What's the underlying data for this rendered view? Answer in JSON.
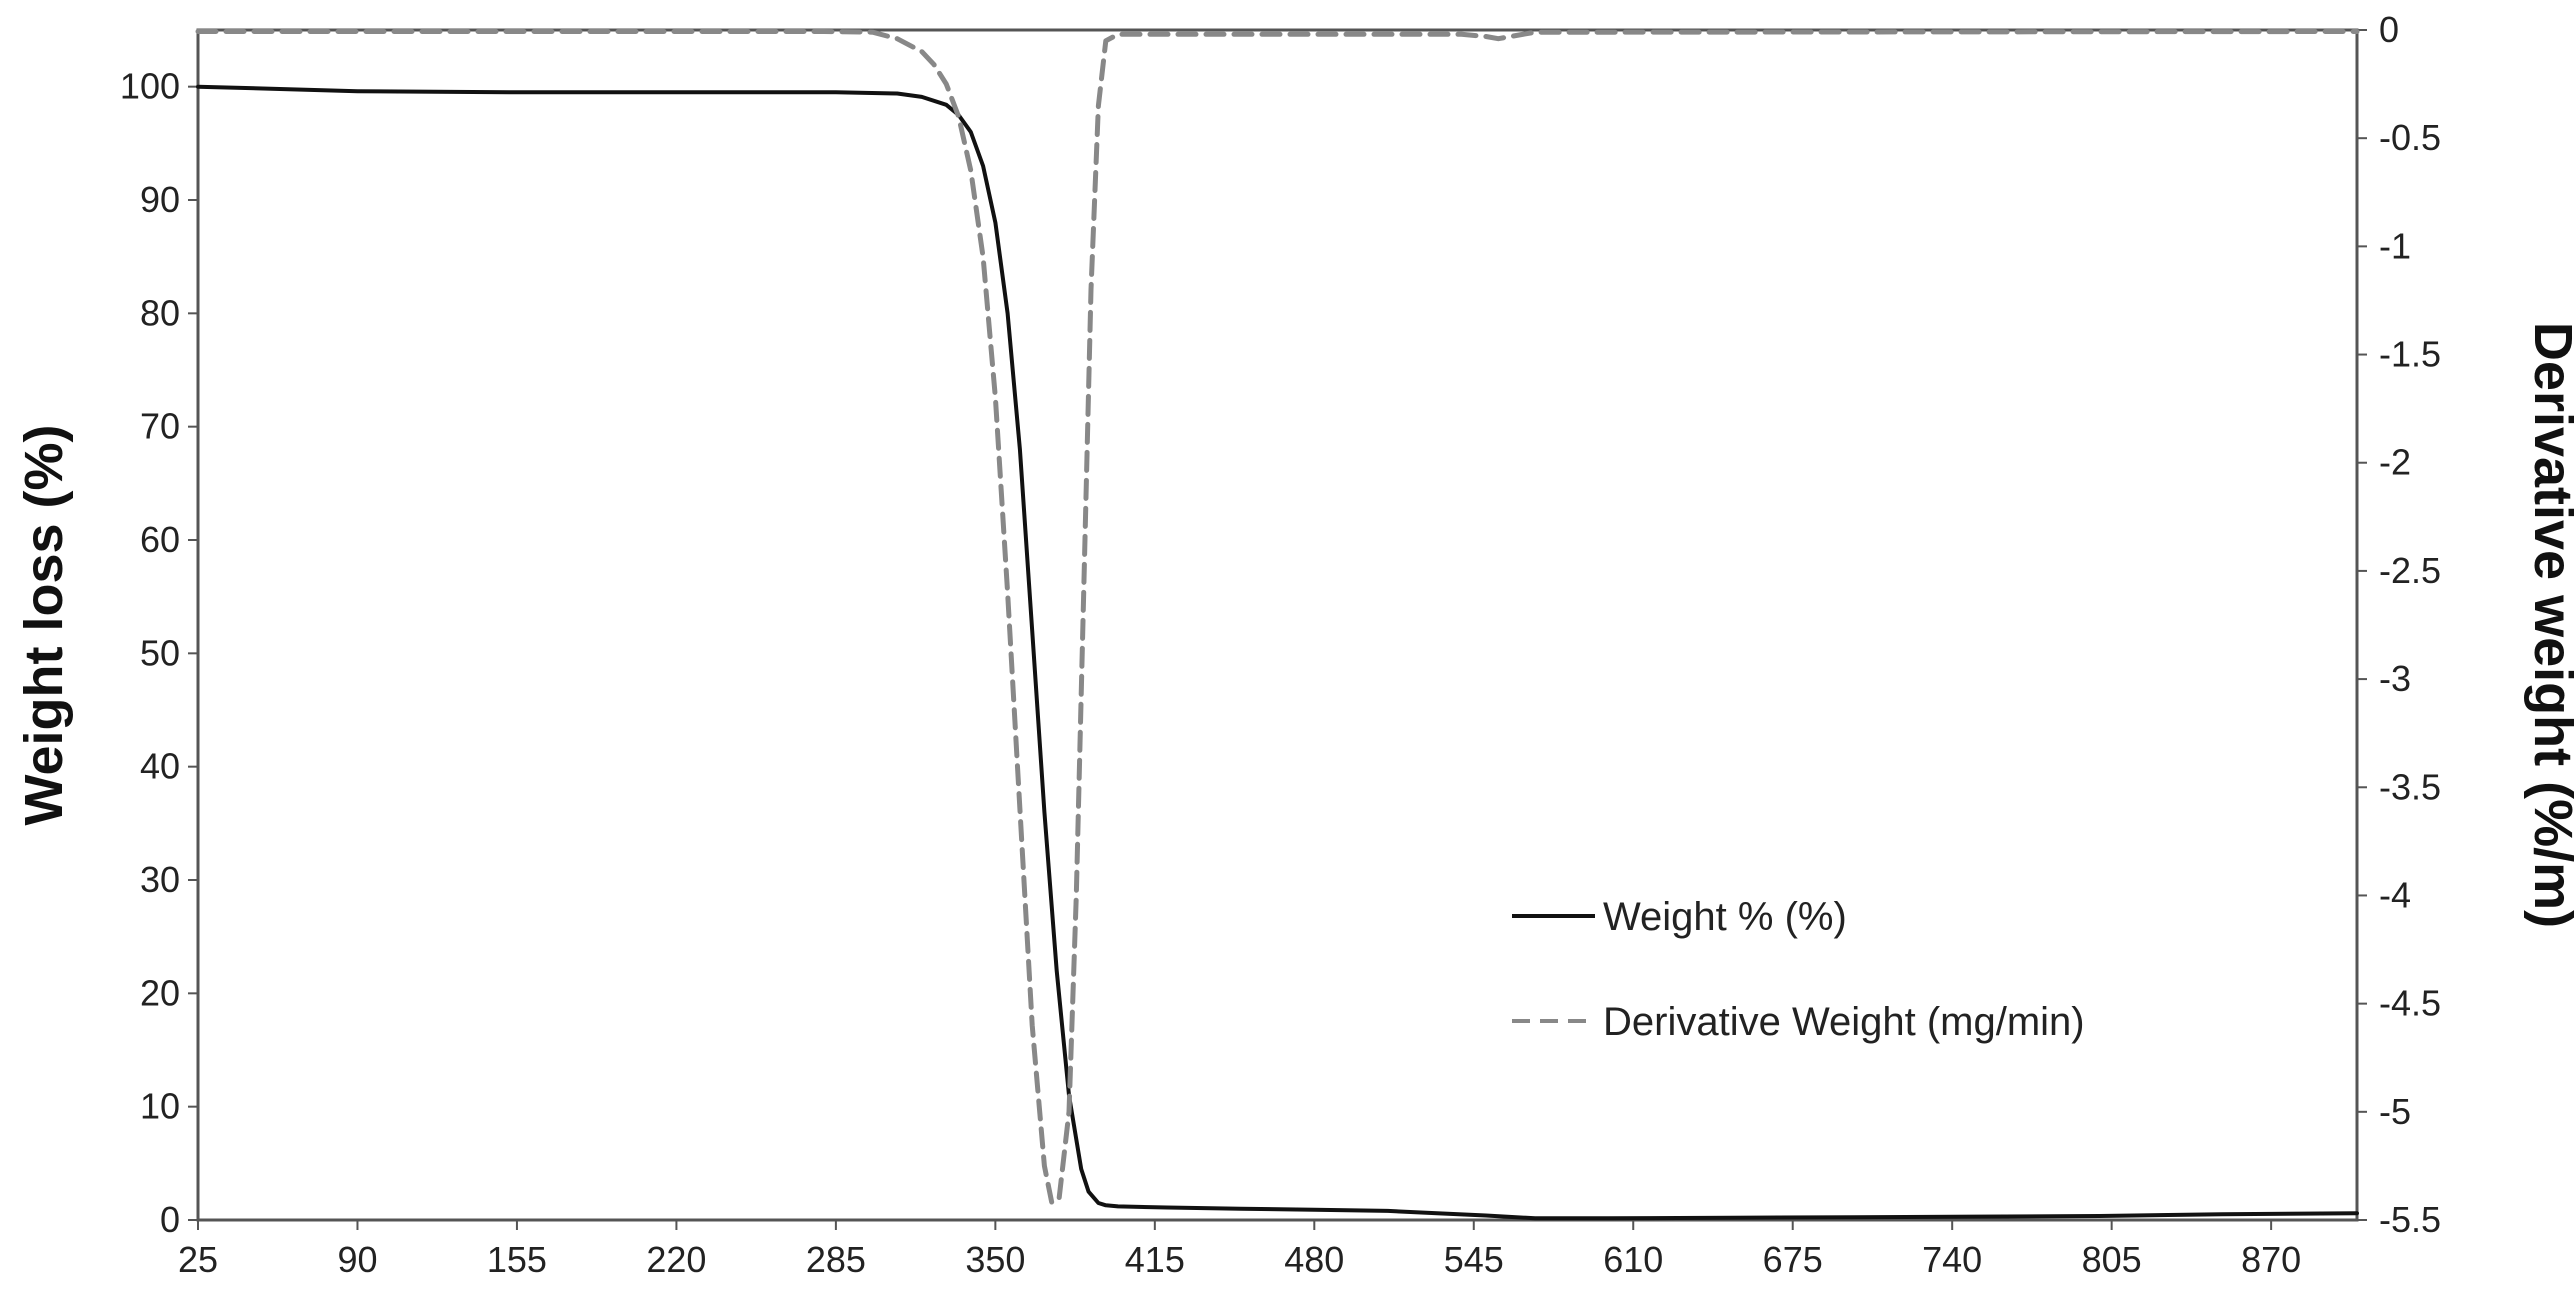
{
  "chart_data": {
    "type": "line",
    "title": "",
    "xlabel": "",
    "ylabel": "Weight loss (%)",
    "y2label": "Derivative weight (%/m)",
    "xlim": [
      25,
      905
    ],
    "ylim": [
      0,
      105
    ],
    "y2lim": [
      -5.5,
      0
    ],
    "x_ticks": [
      "25",
      "90",
      "155",
      "220",
      "285",
      "350",
      "415",
      "480",
      "545",
      "610",
      "675",
      "740",
      "805",
      "870"
    ],
    "y_ticks": [
      "0",
      "10",
      "20",
      "30",
      "40",
      "50",
      "60",
      "70",
      "80",
      "90",
      "100"
    ],
    "y2_ticks": [
      "0",
      "-0.5",
      "-1",
      "-1.5",
      "-2",
      "-2.5",
      "-3",
      "-3.5",
      "-4",
      "-4.5",
      "-5",
      "-5.5"
    ],
    "grid": false,
    "legend_position": "lower-right",
    "series": [
      {
        "name": "Weight % (%)",
        "axis": "left",
        "color": "#111111",
        "dash": "solid",
        "x": [
          25,
          90,
          155,
          220,
          285,
          310,
          320,
          330,
          335,
          340,
          345,
          350,
          355,
          360,
          365,
          370,
          375,
          380,
          385,
          388,
          392,
          395,
          400,
          420,
          450,
          480,
          510,
          530,
          550,
          570,
          600,
          650,
          700,
          750,
          800,
          850,
          905
        ],
        "y": [
          100,
          99.6,
          99.5,
          99.5,
          99.5,
          99.4,
          99.1,
          98.4,
          97.5,
          96,
          93,
          88,
          80,
          68,
          52,
          36,
          22,
          11,
          4.5,
          2.5,
          1.5,
          1.3,
          1.2,
          1.1,
          1.0,
          0.9,
          0.8,
          0.6,
          0.4,
          0.15,
          0.15,
          0.2,
          0.25,
          0.3,
          0.35,
          0.5,
          0.6
        ]
      },
      {
        "name": "Derivative Weight (mg/min)",
        "axis": "right",
        "color": "#888888",
        "dash": "dashed",
        "x": [
          25,
          280,
          300,
          310,
          320,
          325,
          330,
          335,
          340,
          345,
          350,
          355,
          360,
          365,
          370,
          373,
          376,
          380,
          383,
          386,
          389,
          392,
          395,
          400,
          420,
          500,
          540,
          550,
          555,
          560,
          570,
          600,
          905
        ],
        "y": [
          0,
          0,
          -0.01,
          -0.04,
          -0.1,
          -0.16,
          -0.25,
          -0.4,
          -0.65,
          -1.05,
          -1.7,
          -2.6,
          -3.6,
          -4.6,
          -5.25,
          -5.42,
          -5.4,
          -5.0,
          -4.0,
          -2.6,
          -1.2,
          -0.35,
          -0.05,
          -0.02,
          -0.02,
          -0.02,
          -0.02,
          -0.03,
          -0.04,
          -0.03,
          -0.01,
          -0.01,
          0
        ]
      }
    ]
  }
}
